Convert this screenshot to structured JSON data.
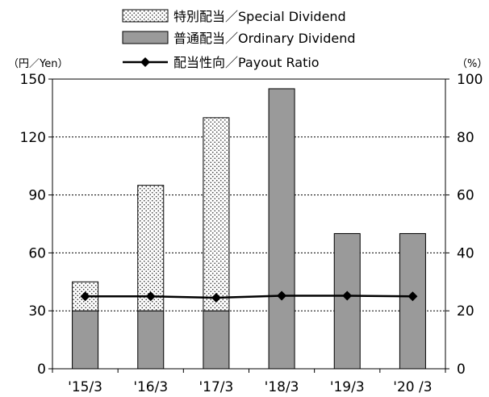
{
  "chart_data": {
    "type": "bar",
    "categories": [
      "'15/3",
      "'16/3",
      "'17/3",
      "'18/3",
      "'19/3",
      "'20 /3"
    ],
    "series": [
      {
        "name": "普通配当／Ordinary Dividend",
        "kind": "bar",
        "axis": "left",
        "stack": "dividend",
        "color": "#9a9a9a",
        "values": [
          30,
          30,
          30,
          145,
          70,
          70
        ]
      },
      {
        "name": "特別配当／Special Dividend",
        "kind": "bar",
        "axis": "left",
        "stack": "dividend",
        "pattern": "dotted",
        "values": [
          15,
          65,
          100,
          0,
          0,
          0
        ]
      },
      {
        "name": "配当性向／Payout Ratio",
        "kind": "line",
        "axis": "right",
        "marker": "diamond",
        "color": "#000000",
        "values": [
          25.0,
          25.0,
          24.5,
          25.2,
          25.2,
          25.0
        ]
      }
    ],
    "legend_order": [
      "特別配当／Special Dividend",
      "普通配当／Ordinary Dividend",
      "配当性向／Payout Ratio"
    ],
    "left_axis": {
      "unit_label": "（円／Yen）",
      "ylim": [
        0,
        150
      ],
      "ticks": [
        0,
        30,
        60,
        90,
        120,
        150
      ]
    },
    "right_axis": {
      "unit_label": "（%）",
      "ylim": [
        0,
        100
      ],
      "ticks": [
        0,
        20,
        40,
        60,
        80,
        100
      ]
    },
    "grid": "horizontal dashed",
    "legend_position": "top-center"
  }
}
